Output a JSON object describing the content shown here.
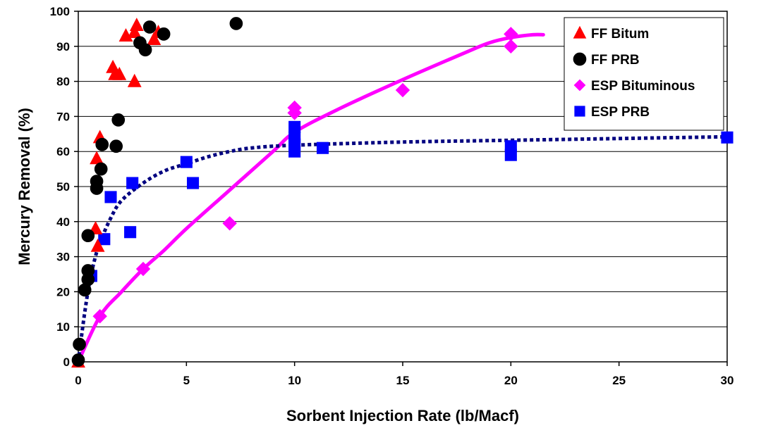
{
  "chart_data": {
    "type": "scatter",
    "title": "",
    "xlabel": "Sorbent Injection Rate (lb/Macf)",
    "ylabel": "Mercury Removal (%)",
    "xlim": [
      0,
      30
    ],
    "ylim": [
      0,
      100
    ],
    "x_ticks": [
      0,
      5,
      10,
      15,
      20,
      25,
      30
    ],
    "y_ticks": [
      0,
      10,
      20,
      30,
      40,
      50,
      60,
      70,
      80,
      90,
      100
    ],
    "grid": "horizontal",
    "legend_position": "top-right",
    "series": [
      {
        "name": "FF Bitum",
        "marker": "triangle",
        "color": "#ff0000",
        "points": [
          [
            0,
            0
          ],
          [
            0.8,
            38
          ],
          [
            0.9,
            33
          ],
          [
            0.85,
            58
          ],
          [
            1.0,
            64
          ],
          [
            1.6,
            84
          ],
          [
            1.7,
            82
          ],
          [
            1.9,
            82
          ],
          [
            2.2,
            93
          ],
          [
            2.6,
            80
          ],
          [
            2.6,
            94
          ],
          [
            2.7,
            96
          ],
          [
            3.5,
            92
          ],
          [
            3.7,
            94
          ]
        ]
      },
      {
        "name": "FF PRB",
        "marker": "circle",
        "color": "#000000",
        "points": [
          [
            0,
            0.5
          ],
          [
            0.05,
            5
          ],
          [
            0.3,
            20.5
          ],
          [
            0.45,
            23.5
          ],
          [
            0.45,
            26
          ],
          [
            0.45,
            36
          ],
          [
            0.85,
            49.5
          ],
          [
            0.85,
            51.5
          ],
          [
            1.05,
            55
          ],
          [
            1.1,
            62
          ],
          [
            1.75,
            61.5
          ],
          [
            1.85,
            69
          ],
          [
            2.85,
            91
          ],
          [
            3.1,
            89
          ],
          [
            3.3,
            95.5
          ],
          [
            3.95,
            93.5
          ],
          [
            7.3,
            96.5
          ]
        ]
      },
      {
        "name": "ESP Bituminous",
        "marker": "diamond",
        "color": "#ff00ff",
        "points": [
          [
            1.0,
            13
          ],
          [
            3.0,
            26.5
          ],
          [
            7.0,
            39.5
          ],
          [
            10,
            71
          ],
          [
            10,
            72.5
          ],
          [
            15,
            77.5
          ],
          [
            20,
            90
          ],
          [
            20,
            93.5
          ]
        ]
      },
      {
        "name": "ESP PRB",
        "marker": "square",
        "color": "#0000ff",
        "points": [
          [
            0.6,
            24.5
          ],
          [
            1.2,
            35
          ],
          [
            1.5,
            47
          ],
          [
            2.4,
            37
          ],
          [
            2.5,
            51
          ],
          [
            5.0,
            57
          ],
          [
            5.3,
            51
          ],
          [
            10,
            60
          ],
          [
            10,
            62
          ],
          [
            10,
            64
          ],
          [
            10,
            67
          ],
          [
            11.3,
            61
          ],
          [
            20,
            59
          ],
          [
            20,
            61.5
          ],
          [
            30,
            64
          ]
        ]
      }
    ],
    "trendlines": [
      {
        "series": "ESP Bituminous",
        "style": "solid",
        "color": "#ff00ff",
        "points": [
          [
            0,
            0
          ],
          [
            1,
            13
          ],
          [
            2,
            20
          ],
          [
            3,
            26.5
          ],
          [
            4,
            32
          ],
          [
            5,
            38
          ],
          [
            7,
            49
          ],
          [
            9,
            60
          ],
          [
            10,
            65.5
          ],
          [
            12,
            72
          ],
          [
            15,
            80.5
          ],
          [
            18,
            88.5
          ],
          [
            19,
            91
          ],
          [
            20,
            92.5
          ],
          [
            21,
            93.3
          ],
          [
            21.5,
            93.3
          ]
        ]
      },
      {
        "series": "ESP PRB",
        "style": "dotted",
        "color": "#000080",
        "points": [
          [
            0,
            0
          ],
          [
            0.25,
            12
          ],
          [
            0.5,
            22
          ],
          [
            0.75,
            29
          ],
          [
            1,
            34
          ],
          [
            1.5,
            41
          ],
          [
            2,
            46
          ],
          [
            3,
            51
          ],
          [
            4,
            54.5
          ],
          [
            5,
            56.5
          ],
          [
            6,
            58.5
          ],
          [
            7,
            60
          ],
          [
            8,
            61
          ],
          [
            10,
            61.8
          ],
          [
            15,
            62.7
          ],
          [
            20,
            63.2
          ],
          [
            25,
            63.7
          ],
          [
            30,
            64.2
          ]
        ]
      }
    ]
  }
}
